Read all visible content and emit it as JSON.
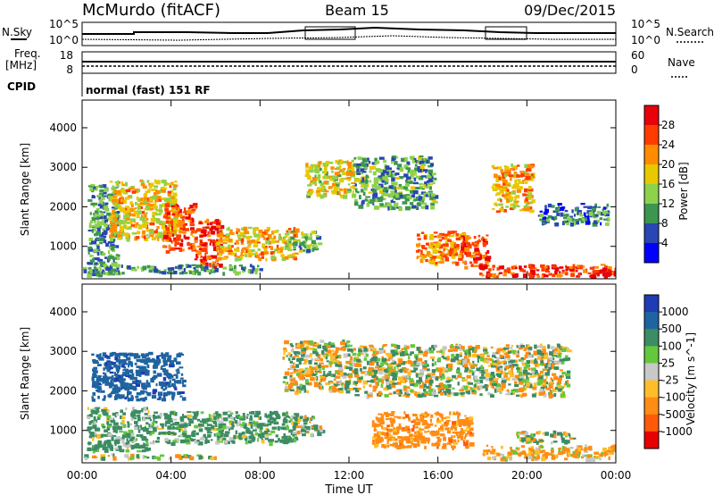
{
  "header": {
    "station": "McMurdo (fitACF)",
    "beam": "Beam 15",
    "date": "09/Dec/2015"
  },
  "noise_panel": {
    "left_label": "N.Sky",
    "right_label": "N.Search",
    "left_ticks": [
      "10^5",
      "10^0"
    ],
    "right_ticks": [
      "10^5",
      "10^0"
    ]
  },
  "freq_panel": {
    "left_label_1": "Freq.",
    "left_label_2": "[MHz]",
    "right_label": "Nave",
    "left_ticks": [
      "18",
      "8"
    ],
    "right_ticks": [
      "60",
      "0"
    ]
  },
  "cpid": {
    "label": "CPID",
    "text": "normal (fast) 151 RF"
  },
  "time_axis": {
    "label": "Time UT",
    "ticks": [
      "00:00",
      "04:00",
      "08:00",
      "12:00",
      "16:00",
      "20:00",
      "00:00"
    ]
  },
  "chart_data": [
    {
      "type": "heatmap",
      "title": "",
      "xlabel": "",
      "ylabel": "Slant Range [km]",
      "xlim": [
        0,
        24
      ],
      "ylim": [
        180,
        4700
      ],
      "yticks": [
        1000,
        2000,
        3000,
        4000
      ],
      "colorbar": {
        "label": "Power [dB]",
        "ticks": [
          "28",
          "24",
          "20",
          "16",
          "12",
          "8",
          "4"
        ],
        "levels": [
          {
            "from": 28,
            "color": "#e8000a"
          },
          {
            "from": 24,
            "color": "#ff3c00"
          },
          {
            "from": 20,
            "color": "#ff8c00"
          },
          {
            "from": 16,
            "color": "#e8c800"
          },
          {
            "from": 12,
            "color": "#8cd24b"
          },
          {
            "from": 8,
            "color": "#3c9650"
          },
          {
            "from": 4,
            "color": "#2846b4"
          },
          {
            "from": 0,
            "color": "#0000ff"
          }
        ]
      },
      "blobs": [
        {
          "t0": 0.2,
          "t1": 1.6,
          "r0": 300,
          "r1": 2600,
          "v": 10
        },
        {
          "t0": 1.2,
          "t1": 4.2,
          "r0": 1200,
          "r1": 2700,
          "v": 19
        },
        {
          "t0": 3.6,
          "t1": 5.0,
          "r0": 900,
          "r1": 2100,
          "v": 25
        },
        {
          "t0": 5.0,
          "t1": 6.2,
          "r0": 500,
          "r1": 1700,
          "v": 27
        },
        {
          "t0": 6.0,
          "t1": 9.6,
          "r0": 700,
          "r1": 1500,
          "v": 20
        },
        {
          "t0": 9.0,
          "t1": 10.6,
          "r0": 900,
          "r1": 1400,
          "v": 13
        },
        {
          "t0": 10.0,
          "t1": 12.2,
          "r0": 2300,
          "r1": 3200,
          "v": 17
        },
        {
          "t0": 12.2,
          "t1": 15.8,
          "r0": 2000,
          "r1": 3300,
          "v": 11
        },
        {
          "t0": 15.0,
          "t1": 17.2,
          "r0": 600,
          "r1": 1400,
          "v": 22
        },
        {
          "t0": 17.0,
          "t1": 18.2,
          "r0": 500,
          "r1": 1300,
          "v": 26
        },
        {
          "t0": 18.4,
          "t1": 20.2,
          "r0": 1900,
          "r1": 3100,
          "v": 20
        },
        {
          "t0": 20.5,
          "t1": 23.6,
          "r0": 1600,
          "r1": 2100,
          "v": 8
        },
        {
          "t0": 17.8,
          "t1": 24.0,
          "r0": 260,
          "r1": 560,
          "v": 27
        },
        {
          "t0": 0.0,
          "t1": 8.0,
          "r0": 350,
          "r1": 560,
          "v": 10
        }
      ]
    },
    {
      "type": "heatmap",
      "title": "",
      "xlabel": "Time UT",
      "ylabel": "Slant Range [km]",
      "xlim": [
        0,
        24
      ],
      "ylim": [
        180,
        4700
      ],
      "yticks": [
        1000,
        2000,
        3000,
        4000
      ],
      "colorbar": {
        "label": "Velocity [m s^-1]",
        "ticks": [
          "1000",
          "500",
          "100",
          "25",
          "-25",
          "-100",
          "-500",
          "-1000"
        ],
        "levels": [
          {
            "from": 1000,
            "color": "#1e3cb4"
          },
          {
            "from": 500,
            "color": "#1e64a0"
          },
          {
            "from": 100,
            "color": "#3c8c64"
          },
          {
            "from": 25,
            "color": "#64c83c"
          },
          {
            "from": -25,
            "color": "#c8c8c8"
          },
          {
            "from": -100,
            "color": "#ffbe28"
          },
          {
            "from": -500,
            "color": "#ff8c14"
          },
          {
            "from": -1000,
            "color": "#ff5a0a"
          },
          {
            "from": -99999,
            "color": "#e60000"
          }
        ]
      },
      "blobs": [
        {
          "t0": 0.4,
          "t1": 4.5,
          "r0": 1800,
          "r1": 3000,
          "v": 800
        },
        {
          "t0": 0.2,
          "t1": 3.0,
          "r0": 500,
          "r1": 1600,
          "v": 200
        },
        {
          "t0": 3.0,
          "t1": 9.6,
          "r0": 700,
          "r1": 1500,
          "v": 200
        },
        {
          "t0": 9.6,
          "t1": 10.8,
          "r0": 900,
          "r1": 1400,
          "v": 50
        },
        {
          "t0": 9.0,
          "t1": 12.2,
          "r0": 2000,
          "r1": 3300,
          "v": 0
        },
        {
          "t0": 12.2,
          "t1": 21.8,
          "r0": 1900,
          "r1": 3200,
          "v": 0
        },
        {
          "t0": 13.0,
          "t1": 17.5,
          "r0": 600,
          "r1": 1500,
          "v": -300
        },
        {
          "t0": 18.0,
          "t1": 24.0,
          "r0": 300,
          "r1": 650,
          "v": -150
        },
        {
          "t0": 19.5,
          "t1": 22.0,
          "r0": 700,
          "r1": 1000,
          "v": 50
        },
        {
          "t0": 0.0,
          "t1": 6.0,
          "r0": 320,
          "r1": 420,
          "v": 50
        }
      ]
    }
  ]
}
